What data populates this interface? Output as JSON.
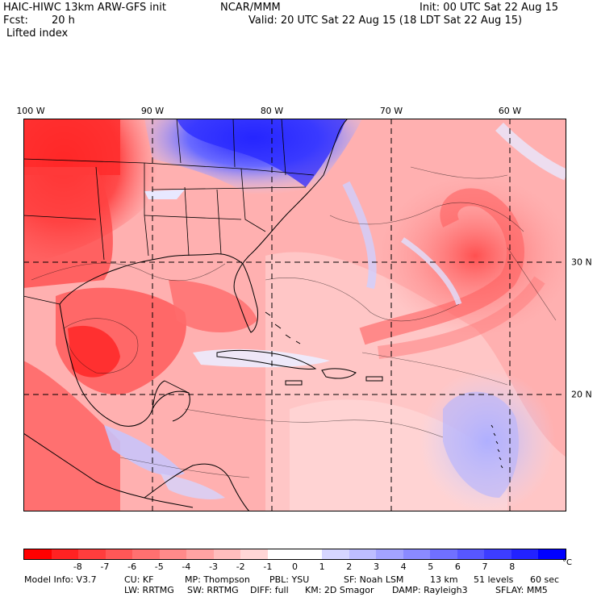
{
  "header": {
    "model": "HAIC-HIWC 13km ARW-GFS init",
    "org": "NCAR/MMM",
    "init": "Init: 00 UTC Sat 22 Aug 15",
    "fcst_label": "Fcst:",
    "fcst_value": "20 h",
    "valid": "Valid: 20 UTC Sat 22 Aug 15 (18 LDT Sat 22 Aug 15)",
    "field": "Lifted index"
  },
  "map": {
    "lon_labels": [
      "100 W",
      "90 W",
      "80 W",
      "70 W",
      "60 W"
    ],
    "lat_labels": [
      "30 N",
      "20 N"
    ]
  },
  "colorbar": {
    "colors": [
      "#ff0000",
      "#ff2222",
      "#ff3d3d",
      "#ff5757",
      "#ff7070",
      "#ff8a8a",
      "#ffa3a3",
      "#ffbdbd",
      "#ffd6d6",
      "#ffffff",
      "#ffffff",
      "#d6d6ff",
      "#bdbdff",
      "#a3a3ff",
      "#8a8aff",
      "#7070ff",
      "#5757ff",
      "#3d3dff",
      "#2222ff",
      "#0000ff"
    ],
    "ticks": [
      "-8",
      "-7",
      "-6",
      "-5",
      "-4",
      "-3",
      "-2",
      "-1",
      "0",
      "1",
      "2",
      "3",
      "4",
      "5",
      "6",
      "7",
      "8"
    ],
    "unit": "°C"
  },
  "footer": {
    "line1": [
      "Model Info: V3.7",
      "CU: KF",
      "MP: Thompson",
      "PBL: YSU",
      "SF: Noah LSM",
      "13 km",
      "51 levels",
      "60 sec"
    ],
    "line2": [
      "LW: RRTMG",
      "SW: RRTMG",
      "DIFF: full",
      "KM: 2D Smagor",
      "DAMP: Rayleigh3",
      "SFLAY: MM5"
    ]
  }
}
